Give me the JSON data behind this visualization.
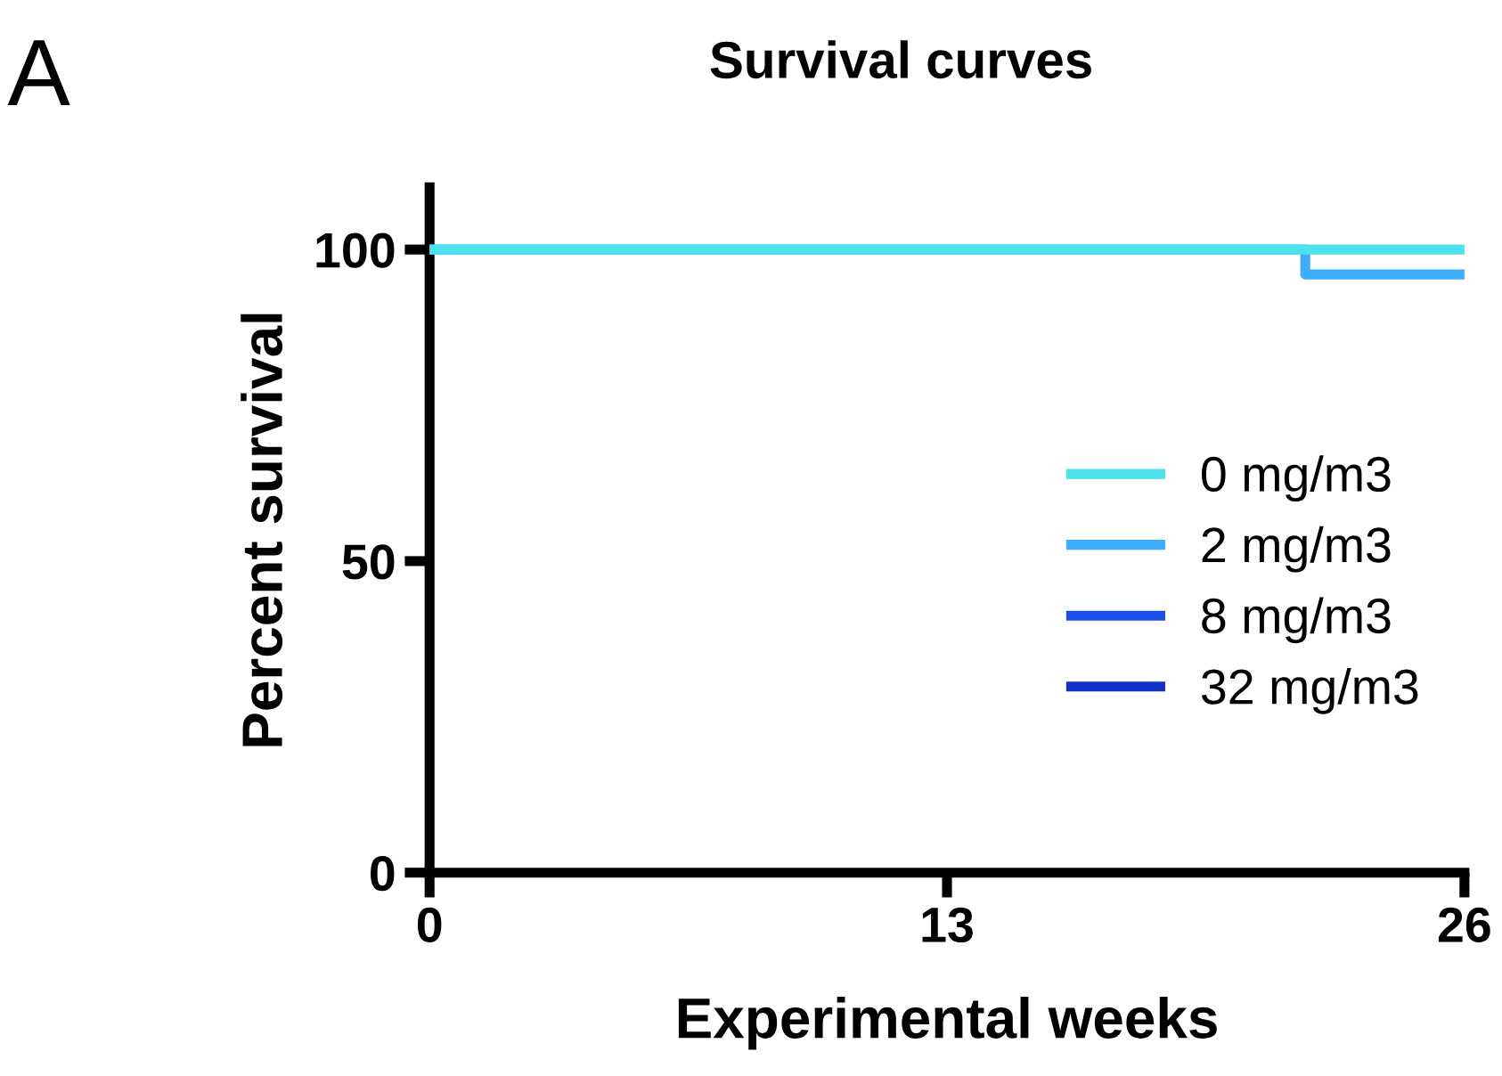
{
  "chart_data": {
    "type": "step",
    "title": "Survival curves",
    "xlabel": "Experimental weeks",
    "ylabel": "Percent survival",
    "annotations": [
      "A"
    ],
    "series": [
      {
        "name": "0 mg/m3",
        "color": "#4de1ee",
        "x": [
          0,
          26
        ],
        "values": [
          100,
          100
        ]
      },
      {
        "name": "2 mg/m3",
        "color": "#3daeff",
        "x": [
          0,
          22,
          26
        ],
        "values": [
          100,
          96,
          96
        ]
      },
      {
        "name": "8 mg/m3",
        "color": "#1a4ee8"
      },
      {
        "name": "32 mg/m3",
        "color": "#1230c8"
      }
    ],
    "xlim": [
      0,
      26
    ],
    "xticks": [
      0,
      13,
      26
    ],
    "ylim": [
      0,
      110
    ],
    "yticks": [
      0,
      50,
      100
    ],
    "grid": false,
    "legend": "right",
    "line_style": "solid"
  }
}
